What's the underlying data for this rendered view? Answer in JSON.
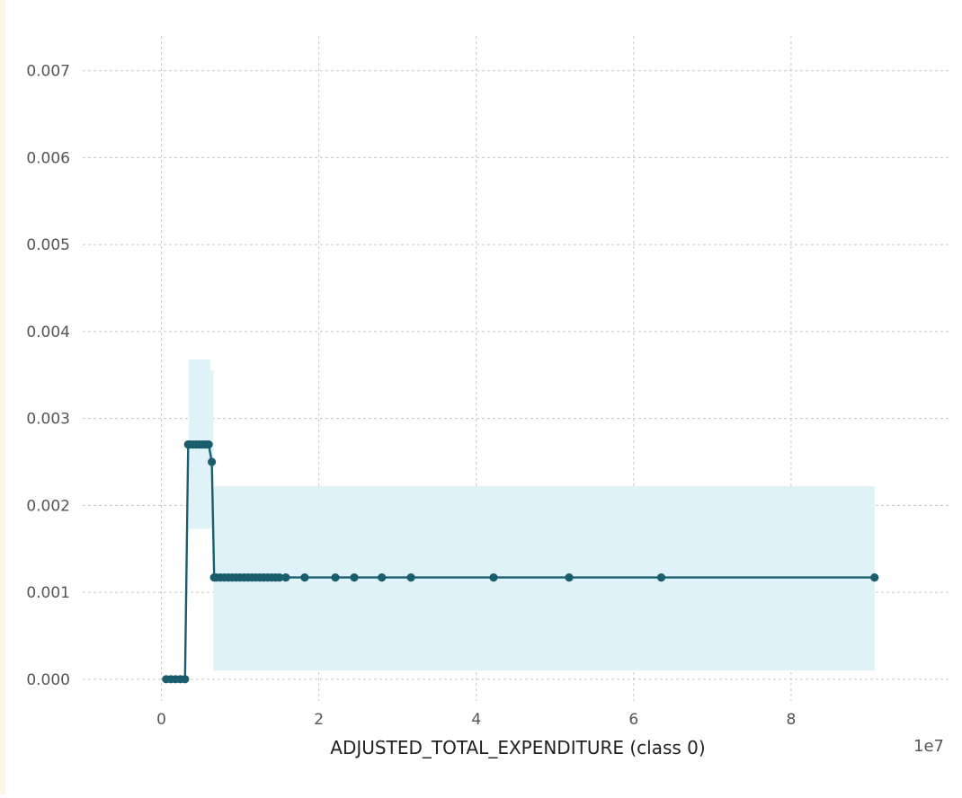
{
  "chart_data": {
    "type": "line",
    "title": "",
    "xlabel": "ADJUSTED_TOTAL_EXPENDITURE (class 0)",
    "ylabel": "",
    "x_offset_label": "1e7",
    "xlim": [
      -1.0,
      10.0
    ],
    "ylim": [
      -0.00025,
      0.0074
    ],
    "x_ticks": [
      0,
      2,
      4,
      6,
      8
    ],
    "x_tick_labels": [
      "0",
      "2",
      "4",
      "6",
      "8"
    ],
    "y_ticks": [
      0.0,
      0.001,
      0.002,
      0.003,
      0.004,
      0.005,
      0.006,
      0.007
    ],
    "y_tick_labels": [
      "0.000",
      "0.001",
      "0.002",
      "0.003",
      "0.004",
      "0.005",
      "0.006",
      "0.007"
    ],
    "grid": true,
    "colors": {
      "line": "#1a5e6e",
      "band": "#dff2f7",
      "grid": "#c8c8c8",
      "tick_text": "#555555",
      "label_text": "#222222"
    },
    "series": [
      {
        "x": [
          0.06,
          0.12,
          0.18,
          0.24,
          0.3,
          0.34,
          0.36,
          0.4,
          0.44,
          0.48,
          0.52,
          0.56,
          0.6,
          0.64,
          0.67,
          0.7,
          0.75,
          0.8,
          0.85,
          0.9,
          0.95,
          1.0,
          1.05,
          1.1,
          1.15,
          1.2,
          1.25,
          1.3,
          1.35,
          1.4,
          1.45,
          1.5,
          1.58,
          1.82,
          2.21,
          2.45,
          2.8,
          3.17,
          4.22,
          5.18,
          6.35,
          9.06
        ],
        "y": [
          0.0,
          0.0,
          0.0,
          0.0,
          0.0,
          0.0027,
          0.0027,
          0.0027,
          0.0027,
          0.0027,
          0.0027,
          0.0027,
          0.0027,
          0.0025,
          0.00117,
          0.00117,
          0.00117,
          0.00117,
          0.00117,
          0.00117,
          0.00117,
          0.00117,
          0.00117,
          0.00117,
          0.00117,
          0.00117,
          0.00117,
          0.00117,
          0.00117,
          0.00117,
          0.00117,
          0.00117,
          0.00117,
          0.00117,
          0.00117,
          0.00117,
          0.00117,
          0.00117,
          0.00117,
          0.00117,
          0.00117,
          0.00117
        ]
      }
    ],
    "confidence_bands": [
      {
        "x_start": 0.35,
        "x_end": 0.62,
        "y_low": 0.00173,
        "y_high": 0.00368
      },
      {
        "x_start": 0.62,
        "x_end": 0.66,
        "y_low": 0.00173,
        "y_high": 0.00355
      },
      {
        "x_start": 0.66,
        "x_end": 9.06,
        "y_low": 0.0001,
        "y_high": 0.00222
      }
    ]
  }
}
